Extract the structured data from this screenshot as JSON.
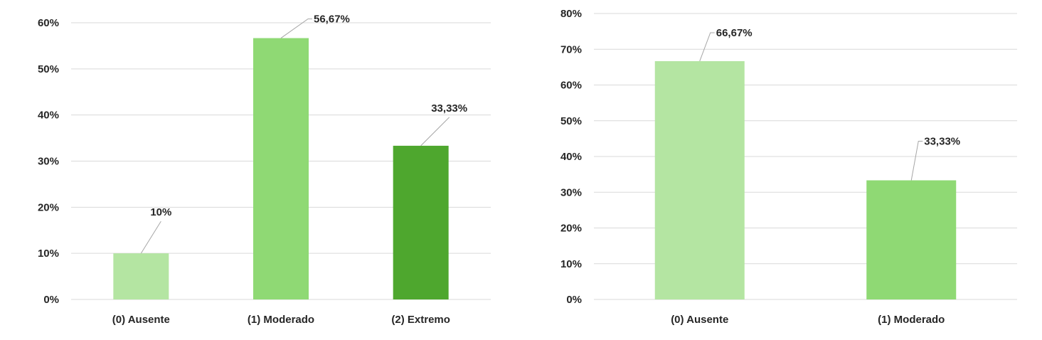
{
  "chart_data": [
    {
      "type": "bar",
      "title": "",
      "xlabel": "",
      "ylabel": "",
      "ylim": [
        0,
        60
      ],
      "ytick_step": 10,
      "ytick_labels": [
        "0%",
        "10%",
        "20%",
        "30%",
        "40%",
        "50%",
        "60%"
      ],
      "categories": [
        "(0) Ausente",
        "(1) Moderado",
        "(2) Extremo"
      ],
      "values": [
        10,
        56.67,
        33.33
      ],
      "data_labels": [
        "10%",
        "56,67%",
        "33,33%"
      ],
      "bar_colors": [
        "#b4e5a2",
        "#8fd974",
        "#4ea72e"
      ],
      "grid": true,
      "legend": "none"
    },
    {
      "type": "bar",
      "title": "",
      "xlabel": "",
      "ylabel": "",
      "ylim": [
        0,
        80
      ],
      "ytick_step": 10,
      "ytick_labels": [
        "0%",
        "10%",
        "20%",
        "30%",
        "40%",
        "50%",
        "60%",
        "70%",
        "80%"
      ],
      "categories": [
        "(0) Ausente",
        "(1) Moderado"
      ],
      "values": [
        66.67,
        33.33
      ],
      "data_labels": [
        "66,67%",
        "33,33%"
      ],
      "bar_colors": [
        "#b4e5a2",
        "#8fd974"
      ],
      "grid": true,
      "legend": "none"
    }
  ]
}
